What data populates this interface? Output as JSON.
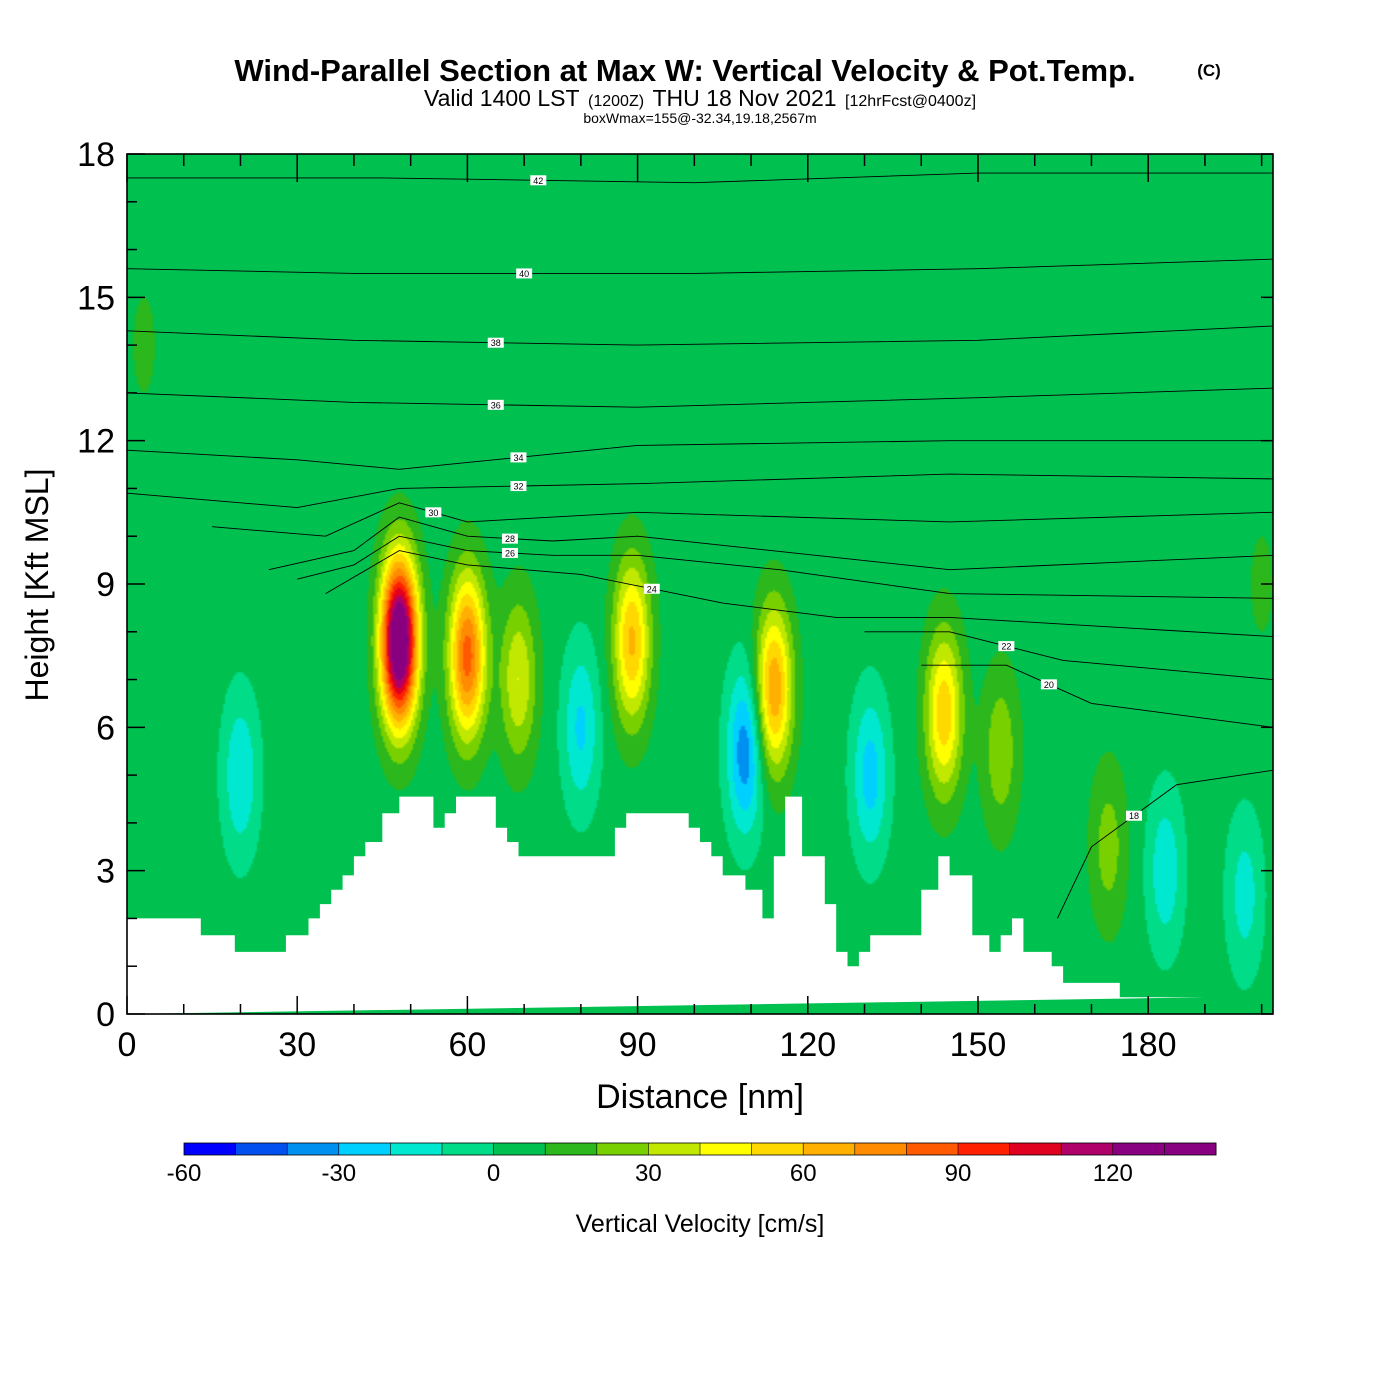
{
  "chart_data": {
    "type": "heatmap",
    "title": "Wind-Parallel Section at Max W: Vertical Velocity & Pot.Temp.",
    "copyright": "(C)",
    "subtitle": {
      "valid": "Valid 1400 LST",
      "utc": "(1200Z)",
      "date": "THU 18 Nov 2021",
      "forecast": "[12hrFcst@0400z]"
    },
    "box_info": "boxWmax=155@-32.34,19.18,2567m",
    "xlabel": "Distance [nm]",
    "ylabel": "Height [Kft MSL]",
    "xlim": [
      0,
      202
    ],
    "ylim": [
      0,
      18
    ],
    "xticks": [
      0,
      30,
      60,
      90,
      120,
      150,
      180
    ],
    "xtick_labels": [
      "0",
      "30",
      "60",
      "90",
      "120",
      "150",
      "180"
    ],
    "yticks": [
      0,
      3,
      6,
      9,
      12,
      15,
      18
    ],
    "ytick_labels": [
      "0",
      "3",
      "6",
      "9",
      "12",
      "15",
      "18"
    ],
    "colorbar": {
      "label": "Vertical Velocity [cm/s]",
      "bounds": [
        -60,
        -50,
        -40,
        -30,
        -20,
        -10,
        0,
        10,
        20,
        30,
        40,
        50,
        60,
        70,
        80,
        90,
        100,
        110,
        120,
        130,
        140
      ],
      "colors": [
        "#0000ff",
        "#0050f0",
        "#0090f0",
        "#00d0ff",
        "#00e8d0",
        "#00dc88",
        "#00c050",
        "#2cb81c",
        "#78d000",
        "#c0e800",
        "#ffff00",
        "#ffd800",
        "#ffb000",
        "#ff8c00",
        "#ff5a00",
        "#ff2000",
        "#e00020",
        "#b0006a",
        "#880080",
        "#880080"
      ],
      "tick_values": [
        -60,
        -30,
        0,
        30,
        60,
        90,
        120
      ],
      "tick_labels": [
        "-60",
        "-30",
        "0",
        "30",
        "60",
        "90",
        "120"
      ]
    },
    "background_velocity": 5,
    "updrafts": [
      {
        "x": 48,
        "z": 7.8,
        "peak": 150
      },
      {
        "x": 60,
        "z": 7.5,
        "peak": 85
      },
      {
        "x": 69,
        "z": 7.0,
        "peak": 40
      },
      {
        "x": 89,
        "z": 7.8,
        "peak": 62
      },
      {
        "x": 114,
        "z": 6.8,
        "peak": 70
      },
      {
        "x": 144,
        "z": 6.3,
        "peak": 58
      },
      {
        "x": 154,
        "z": 5.5,
        "peak": 28
      },
      {
        "x": 173,
        "z": 3.5,
        "peak": 25
      },
      {
        "x": 3,
        "z": 14,
        "peak": 12
      },
      {
        "x": 200,
        "z": 9,
        "peak": 12
      }
    ],
    "downdrafts": [
      {
        "x": 20,
        "z": 5.0,
        "peak": -20
      },
      {
        "x": 80,
        "z": 6.0,
        "peak": -22
      },
      {
        "x": 109,
        "z": 5.5,
        "peak": -38
      },
      {
        "x": 131,
        "z": 5.0,
        "peak": -25
      },
      {
        "x": 183,
        "z": 3.0,
        "peak": -18
      },
      {
        "x": 197,
        "z": 2.5,
        "peak": -15
      }
    ],
    "terrain": {
      "x": [
        0,
        13,
        13,
        19,
        19,
        28,
        28,
        32,
        32,
        34,
        34,
        36,
        36,
        38,
        38,
        40,
        40,
        42,
        42,
        45,
        45,
        48,
        48,
        54,
        54,
        56,
        56,
        58,
        58,
        65,
        65,
        67,
        67,
        69,
        69,
        86,
        86,
        88,
        88,
        99,
        99,
        101,
        101,
        103,
        103,
        105,
        105,
        109,
        109,
        112,
        112,
        114,
        114,
        116,
        116,
        119,
        119,
        123,
        123,
        125,
        125,
        127,
        127,
        129,
        129,
        131,
        131,
        140,
        140,
        143,
        143,
        145,
        145,
        149,
        149,
        152,
        152,
        154,
        154,
        156,
        156,
        158,
        158,
        163,
        163,
        165,
        165,
        175,
        175,
        190,
        190,
        202
      ],
      "z": [
        2.0,
        2.0,
        1.65,
        1.65,
        1.3,
        1.3,
        1.65,
        1.65,
        2.0,
        2.0,
        2.3,
        2.3,
        2.6,
        2.6,
        2.9,
        2.9,
        3.3,
        3.3,
        3.6,
        3.6,
        4.2,
        4.2,
        4.55,
        4.55,
        3.9,
        3.9,
        4.2,
        4.2,
        4.55,
        4.55,
        3.9,
        3.9,
        3.6,
        3.6,
        3.3,
        3.3,
        3.9,
        3.9,
        4.2,
        4.2,
        3.9,
        3.9,
        3.6,
        3.6,
        3.3,
        3.3,
        2.9,
        2.9,
        2.6,
        2.6,
        2.0,
        2.0,
        3.3,
        3.3,
        4.55,
        4.55,
        3.3,
        3.3,
        2.3,
        2.3,
        1.3,
        1.3,
        1.0,
        1.0,
        1.3,
        1.3,
        1.65,
        1.65,
        2.6,
        2.6,
        3.3,
        3.3,
        2.9,
        2.9,
        1.65,
        1.65,
        1.3,
        1.3,
        1.65,
        1.65,
        2.0,
        2.0,
        1.3,
        1.3,
        1.0,
        1.0,
        0.65,
        0.65,
        0.35,
        0.35
      ]
    },
    "theta_contours": [
      {
        "label": "42",
        "points": [
          [
            0,
            17.5
          ],
          [
            45,
            17.5
          ],
          [
            100,
            17.4
          ],
          [
            150,
            17.6
          ],
          [
            202,
            17.6
          ]
        ]
      },
      {
        "label": "40",
        "points": [
          [
            0,
            15.6
          ],
          [
            40,
            15.5
          ],
          [
            100,
            15.5
          ],
          [
            150,
            15.6
          ],
          [
            202,
            15.8
          ]
        ]
      },
      {
        "label": "38",
        "points": [
          [
            0,
            14.3
          ],
          [
            40,
            14.1
          ],
          [
            90,
            14.0
          ],
          [
            150,
            14.1
          ],
          [
            202,
            14.4
          ]
        ]
      },
      {
        "label": "36",
        "points": [
          [
            0,
            13.0
          ],
          [
            40,
            12.8
          ],
          [
            90,
            12.7
          ],
          [
            150,
            12.9
          ],
          [
            202,
            13.1
          ]
        ]
      },
      {
        "label": "34",
        "points": [
          [
            0,
            11.8
          ],
          [
            30,
            11.6
          ],
          [
            48,
            11.4
          ],
          [
            90,
            11.9
          ],
          [
            145,
            12.0
          ],
          [
            202,
            12.0
          ]
        ]
      },
      {
        "label": "32",
        "points": [
          [
            0,
            10.9
          ],
          [
            30,
            10.6
          ],
          [
            48,
            11.0
          ],
          [
            90,
            11.1
          ],
          [
            145,
            11.3
          ],
          [
            202,
            11.2
          ]
        ]
      },
      {
        "label": "30",
        "points": [
          [
            15,
            10.2
          ],
          [
            35,
            10.0
          ],
          [
            48,
            10.7
          ],
          [
            60,
            10.3
          ],
          [
            90,
            10.5
          ],
          [
            145,
            10.3
          ],
          [
            202,
            10.5
          ]
        ]
      },
      {
        "label": "28",
        "points": [
          [
            25,
            9.3
          ],
          [
            40,
            9.7
          ],
          [
            48,
            10.4
          ],
          [
            60,
            10.0
          ],
          [
            75,
            9.9
          ],
          [
            90,
            10.0
          ],
          [
            145,
            9.3
          ],
          [
            202,
            9.6
          ]
        ]
      },
      {
        "label": "26",
        "points": [
          [
            30,
            9.1
          ],
          [
            40,
            9.4
          ],
          [
            48,
            10.0
          ],
          [
            60,
            9.7
          ],
          [
            75,
            9.6
          ],
          [
            90,
            9.6
          ],
          [
            115,
            9.3
          ],
          [
            145,
            8.8
          ],
          [
            202,
            8.7
          ]
        ]
      },
      {
        "label": "24",
        "points": [
          [
            35,
            8.8
          ],
          [
            48,
            9.7
          ],
          [
            60,
            9.4
          ],
          [
            80,
            9.2
          ],
          [
            105,
            8.6
          ],
          [
            125,
            8.3
          ],
          [
            145,
            8.3
          ],
          [
            202,
            7.9
          ]
        ]
      },
      {
        "label": "22",
        "points": [
          [
            130,
            8.0
          ],
          [
            145,
            8.0
          ],
          [
            165,
            7.4
          ],
          [
            202,
            7.0
          ]
        ]
      },
      {
        "label": "20",
        "points": [
          [
            140,
            7.3
          ],
          [
            155,
            7.3
          ],
          [
            170,
            6.5
          ],
          [
            202,
            6.0
          ]
        ]
      },
      {
        "label": "18",
        "points": [
          [
            164,
            2.0
          ],
          [
            170,
            3.5
          ],
          [
            185,
            4.8
          ],
          [
            202,
            5.1
          ]
        ]
      }
    ]
  }
}
